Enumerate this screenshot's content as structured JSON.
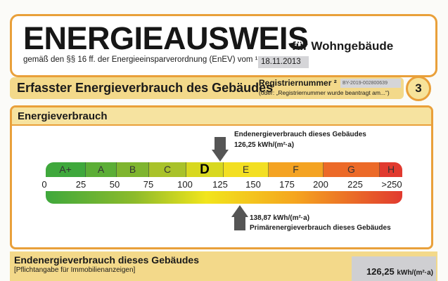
{
  "header": {
    "title": "ENERGIEAUSWEIS",
    "subtitle": "für Wohngebäude",
    "law": "gemäß den §§ 16 ff. der Energieeinsparverordnung (EnEV) vom ¹",
    "date": "18.11.2013"
  },
  "section": {
    "title": "Erfasster Energieverbrauch des Gebäudes",
    "reg_label": "Registriernummer ²",
    "reg_number": "BY-2019-002800639",
    "reg_note": "(oder: „Registriernummer wurde beantragt am...“)",
    "page_number": "3"
  },
  "panel": {
    "title": "Energieverbrauch"
  },
  "scale": {
    "classes": [
      {
        "label": "A+",
        "color": "#3fa83c"
      },
      {
        "label": "A",
        "color": "#5cae36"
      },
      {
        "label": "B",
        "color": "#7fb52f"
      },
      {
        "label": "C",
        "color": "#a9c22a"
      },
      {
        "label": "D",
        "color": "#d8d820"
      },
      {
        "label": "E",
        "color": "#f3df22"
      },
      {
        "label": "F",
        "color": "#f4a322"
      },
      {
        "label": "G",
        "color": "#ec6a28"
      },
      {
        "label": "H",
        "color": "#e13a2f"
      }
    ],
    "ticks": [
      "0",
      "25",
      "50",
      "75",
      "100",
      "125",
      "150",
      "175",
      "200",
      "225",
      ">250"
    ],
    "highlight": "D"
  },
  "end_energy": {
    "label": "Endenergieverbrauch dieses Gebäudes",
    "value": "126,25 kWh/(m²·a)",
    "numeric": 126.25
  },
  "primary_energy": {
    "label": "Primärenergieverbrauch dieses Gebäudes",
    "value": "138,87 kWh/(m²·a)",
    "numeric": 138.87
  },
  "bottom": {
    "title": "Endenergieverbrauch dieses Gebäudes",
    "note": "[Pflichtangabe für Immobilienanzeigen]",
    "value": "126,25",
    "unit": "kWh/(m²·a)"
  }
}
